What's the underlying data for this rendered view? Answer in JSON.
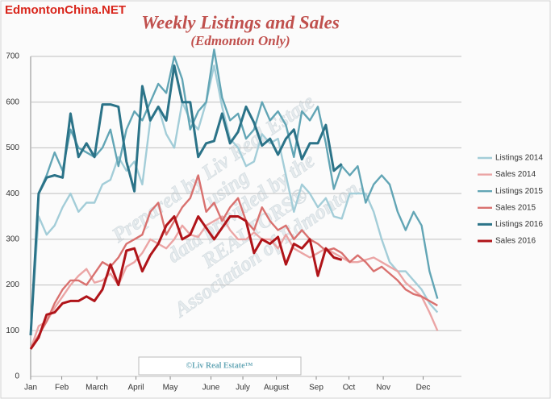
{
  "chart_data": {
    "type": "line",
    "title": "Weekly Listings and Sales",
    "subtitle": "(Edmonton Only)",
    "source_watermark": "EdmontonChina.NET",
    "footer": "©Liv Real Estate™",
    "annotations": [
      "Prepared by Liv Real Estate",
      "using",
      "data provided by the",
      "REALTORS®",
      "Association of Edmonton."
    ],
    "x": [
      0,
      1,
      2,
      3,
      4,
      5,
      6,
      7,
      8,
      9,
      10,
      11,
      12,
      13,
      14,
      15,
      16,
      17,
      18,
      19,
      20,
      21,
      22,
      23,
      24,
      25,
      26,
      27,
      28,
      29,
      30,
      31,
      32,
      33,
      34,
      35,
      36,
      37,
      38,
      39,
      40,
      41,
      42,
      43,
      44,
      45,
      46,
      47,
      48,
      49,
      50,
      51
    ],
    "xlim": [
      0,
      54
    ],
    "xticks": [
      {
        "value": 0,
        "label": "Jan"
      },
      {
        "value": 3.9,
        "label": "Feb"
      },
      {
        "value": 8.3,
        "label": "March"
      },
      {
        "value": 13.2,
        "label": "April"
      },
      {
        "value": 17.5,
        "label": "May"
      },
      {
        "value": 22.6,
        "label": "June"
      },
      {
        "value": 26.6,
        "label": "July"
      },
      {
        "value": 30.8,
        "label": "August"
      },
      {
        "value": 35.8,
        "label": "Sep"
      },
      {
        "value": 39.9,
        "label": "Oct"
      },
      {
        "value": 44.2,
        "label": "Nov"
      },
      {
        "value": 49.2,
        "label": "Dec"
      }
    ],
    "ylim": [
      0,
      700
    ],
    "yticks": [
      0,
      100,
      200,
      300,
      400,
      500,
      600,
      700
    ],
    "grid": true,
    "legend": "right",
    "series": [
      {
        "name": "Listings 2014",
        "color": "#a3cdd8",
        "values": [
          90,
          350,
          310,
          330,
          370,
          400,
          360,
          380,
          380,
          420,
          430,
          480,
          450,
          470,
          420,
          560,
          590,
          530,
          500,
          600,
          560,
          540,
          600,
          680,
          590,
          520,
          500,
          460,
          470,
          530,
          510,
          520,
          440,
          360,
          420,
          400,
          370,
          390,
          350,
          345,
          400,
          400,
          400,
          360,
          300,
          250,
          230,
          230,
          210,
          190,
          160,
          140
        ]
      },
      {
        "name": "Sales 2014",
        "color": "#eba5a5",
        "values": [
          60,
          110,
          120,
          150,
          175,
          200,
          220,
          235,
          205,
          210,
          225,
          200,
          240,
          250,
          270,
          300,
          290,
          280,
          300,
          330,
          310,
          305,
          330,
          340,
          350,
          320,
          300,
          300,
          315,
          300,
          300,
          280,
          310,
          280,
          270,
          260,
          270,
          280,
          270,
          260,
          250,
          250,
          255,
          260,
          250,
          240,
          230,
          205,
          190,
          175,
          140,
          100
        ]
      },
      {
        "name": "Listings 2015",
        "color": "#62a5b5",
        "values": [
          90,
          400,
          440,
          490,
          450,
          540,
          500,
          490,
          480,
          500,
          540,
          460,
          540,
          580,
          560,
          600,
          640,
          620,
          700,
          650,
          540,
          580,
          600,
          715,
          610,
          560,
          575,
          520,
          540,
          600,
          560,
          580,
          550,
          480,
          580,
          560,
          590,
          510,
          410,
          460,
          440,
          460,
          380,
          420,
          440,
          420,
          360,
          320,
          360,
          330,
          230,
          170
        ]
      },
      {
        "name": "Sales 2015",
        "color": "#d9716f",
        "values": [
          60,
          90,
          120,
          160,
          190,
          210,
          210,
          200,
          225,
          250,
          240,
          260,
          290,
          300,
          310,
          360,
          380,
          310,
          340,
          370,
          390,
          440,
          360,
          380,
          340,
          370,
          390,
          340,
          320,
          370,
          340,
          320,
          330,
          300,
          320,
          300,
          290,
          275,
          280,
          270,
          250,
          265,
          250,
          230,
          240,
          225,
          210,
          190,
          180,
          175,
          165,
          155
        ]
      },
      {
        "name": "Listings 2016",
        "color": "#2b7388",
        "values": [
          90,
          400,
          435,
          440,
          435,
          575,
          480,
          510,
          480,
          595,
          595,
          590,
          470,
          405,
          635,
          560,
          590,
          560,
          680,
          600,
          600,
          480,
          510,
          515,
          575,
          510,
          535,
          590,
          555,
          505,
          520,
          485,
          520,
          540,
          475,
          510,
          510,
          550,
          450,
          465,
          null,
          null,
          null,
          null,
          null,
          null,
          null,
          null,
          null,
          null,
          null,
          null
        ]
      },
      {
        "name": "Sales 2016",
        "color": "#b01419",
        "values": [
          60,
          85,
          135,
          140,
          160,
          165,
          165,
          175,
          165,
          190,
          245,
          200,
          275,
          280,
          230,
          265,
          290,
          330,
          350,
          300,
          310,
          350,
          325,
          300,
          325,
          350,
          350,
          340,
          270,
          300,
          290,
          305,
          245,
          290,
          280,
          300,
          220,
          280,
          260,
          255,
          null,
          null,
          null,
          null,
          null,
          null,
          null,
          null,
          null,
          null,
          null,
          null
        ]
      }
    ]
  }
}
